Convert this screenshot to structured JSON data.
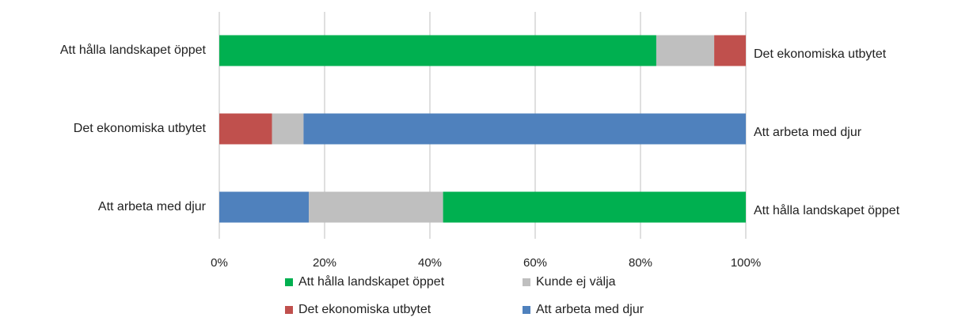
{
  "chart_data": {
    "type": "stacked-bar-horizontal",
    "categories": [
      "Att hålla landskapet öppet",
      "Det ekonomiska utbytet",
      "Att arbeta med djur"
    ],
    "right_labels": [
      "Det ekonomiska utbytet",
      "Att arbeta med djur",
      "Att hålla landskapet öppet"
    ],
    "series": [
      {
        "name": "Att hålla landskapet öppet",
        "color": "#00b050",
        "values": [
          83,
          null,
          57.5
        ]
      },
      {
        "name": "Kunde ej välja",
        "color": "#bfbfbf",
        "values": [
          11,
          6,
          25.5
        ]
      },
      {
        "name": "Det ekonomiska utbytet",
        "color": "#c0504d",
        "values": [
          6,
          10,
          null
        ]
      },
      {
        "name": "Att arbeta med djur",
        "color": "#4f81bd",
        "values": [
          null,
          84,
          17
        ]
      }
    ],
    "xlim": [
      0,
      100
    ],
    "xticks": [
      {
        "value": 0,
        "label": "0%"
      },
      {
        "value": 20,
        "label": "20%"
      },
      {
        "value": 40,
        "label": "40%"
      },
      {
        "value": 60,
        "label": "60%"
      },
      {
        "value": 80,
        "label": "80%"
      },
      {
        "value": 100,
        "label": "100%"
      }
    ],
    "grid": true,
    "legend": "bottom"
  }
}
